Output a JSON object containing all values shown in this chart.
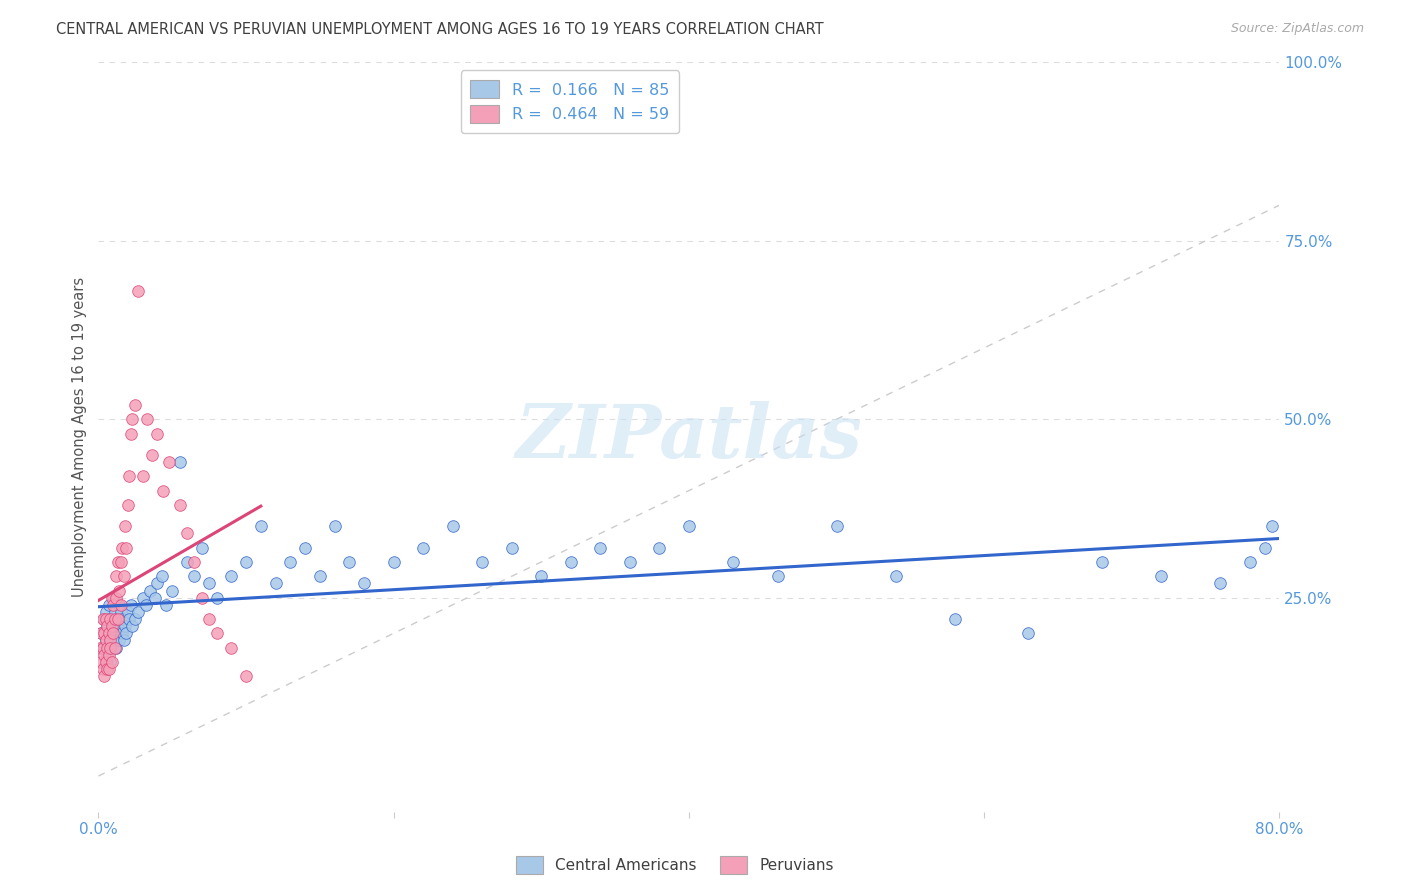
{
  "title": "CENTRAL AMERICAN VS PERUVIAN UNEMPLOYMENT AMONG AGES 16 TO 19 YEARS CORRELATION CHART",
  "source": "Source: ZipAtlas.com",
  "ylabel": "Unemployment Among Ages 16 to 19 years",
  "xlim": [
    0.0,
    0.8
  ],
  "ylim": [
    -0.05,
    1.0
  ],
  "yticks_right": [
    0.25,
    0.5,
    0.75,
    1.0
  ],
  "ytick_right_labels": [
    "25.0%",
    "50.0%",
    "75.0%",
    "100.0%"
  ],
  "legend_text_blue": "R =  0.166   N = 85",
  "legend_text_pink": "R =  0.464   N = 59",
  "legend_label_blue": "Central Americans",
  "legend_label_pink": "Peruvians",
  "dot_color_blue": "#a8c8e8",
  "dot_color_pink": "#f4a0b8",
  "line_color_blue": "#3366cc",
  "line_color_pink": "#dd4477",
  "diag_color": "#cccccc",
  "title_color": "#404040",
  "axis_color": "#5599dd",
  "background_color": "#ffffff",
  "grid_color": "#dddddd",
  "watermark": "ZIPatlas",
  "blue_x": [
    0.002,
    0.003,
    0.004,
    0.005,
    0.005,
    0.006,
    0.006,
    0.007,
    0.007,
    0.008,
    0.008,
    0.008,
    0.009,
    0.009,
    0.01,
    0.01,
    0.01,
    0.011,
    0.011,
    0.012,
    0.012,
    0.013,
    0.013,
    0.014,
    0.014,
    0.015,
    0.015,
    0.016,
    0.016,
    0.017,
    0.018,
    0.019,
    0.02,
    0.021,
    0.022,
    0.023,
    0.025,
    0.027,
    0.03,
    0.032,
    0.035,
    0.038,
    0.04,
    0.043,
    0.046,
    0.05,
    0.055,
    0.06,
    0.065,
    0.07,
    0.075,
    0.08,
    0.09,
    0.1,
    0.11,
    0.12,
    0.13,
    0.14,
    0.15,
    0.16,
    0.17,
    0.18,
    0.2,
    0.22,
    0.24,
    0.26,
    0.28,
    0.3,
    0.32,
    0.34,
    0.36,
    0.38,
    0.4,
    0.43,
    0.46,
    0.5,
    0.54,
    0.58,
    0.63,
    0.68,
    0.72,
    0.76,
    0.78,
    0.79,
    0.795
  ],
  "blue_y": [
    0.2,
    0.18,
    0.22,
    0.19,
    0.23,
    0.17,
    0.21,
    0.2,
    0.24,
    0.16,
    0.19,
    0.22,
    0.18,
    0.21,
    0.2,
    0.22,
    0.25,
    0.19,
    0.23,
    0.2,
    0.18,
    0.22,
    0.21,
    0.24,
    0.19,
    0.21,
    0.23,
    0.2,
    0.22,
    0.19,
    0.21,
    0.2,
    0.23,
    0.22,
    0.24,
    0.21,
    0.22,
    0.23,
    0.25,
    0.24,
    0.26,
    0.25,
    0.27,
    0.28,
    0.24,
    0.26,
    0.44,
    0.3,
    0.28,
    0.32,
    0.27,
    0.25,
    0.28,
    0.3,
    0.35,
    0.27,
    0.3,
    0.32,
    0.28,
    0.35,
    0.3,
    0.27,
    0.3,
    0.32,
    0.35,
    0.3,
    0.32,
    0.28,
    0.3,
    0.32,
    0.3,
    0.32,
    0.35,
    0.3,
    0.28,
    0.35,
    0.28,
    0.22,
    0.2,
    0.3,
    0.28,
    0.27,
    0.3,
    0.32,
    0.35
  ],
  "pink_x": [
    0.001,
    0.002,
    0.002,
    0.003,
    0.003,
    0.003,
    0.004,
    0.004,
    0.004,
    0.005,
    0.005,
    0.005,
    0.006,
    0.006,
    0.006,
    0.007,
    0.007,
    0.007,
    0.008,
    0.008,
    0.008,
    0.009,
    0.009,
    0.009,
    0.01,
    0.01,
    0.011,
    0.011,
    0.012,
    0.012,
    0.013,
    0.013,
    0.014,
    0.015,
    0.015,
    0.016,
    0.017,
    0.018,
    0.019,
    0.02,
    0.021,
    0.022,
    0.023,
    0.025,
    0.027,
    0.03,
    0.033,
    0.036,
    0.04,
    0.044,
    0.048,
    0.055,
    0.06,
    0.065,
    0.07,
    0.075,
    0.08,
    0.09,
    0.1
  ],
  "pink_y": [
    0.18,
    0.16,
    0.2,
    0.15,
    0.18,
    0.22,
    0.17,
    0.2,
    0.14,
    0.16,
    0.19,
    0.22,
    0.15,
    0.18,
    0.21,
    0.17,
    0.2,
    0.15,
    0.19,
    0.22,
    0.18,
    0.21,
    0.16,
    0.25,
    0.2,
    0.24,
    0.22,
    0.18,
    0.25,
    0.28,
    0.22,
    0.3,
    0.26,
    0.3,
    0.24,
    0.32,
    0.28,
    0.35,
    0.32,
    0.38,
    0.42,
    0.48,
    0.5,
    0.52,
    0.68,
    0.42,
    0.5,
    0.45,
    0.48,
    0.4,
    0.44,
    0.38,
    0.34,
    0.3,
    0.25,
    0.22,
    0.2,
    0.18,
    0.14
  ]
}
